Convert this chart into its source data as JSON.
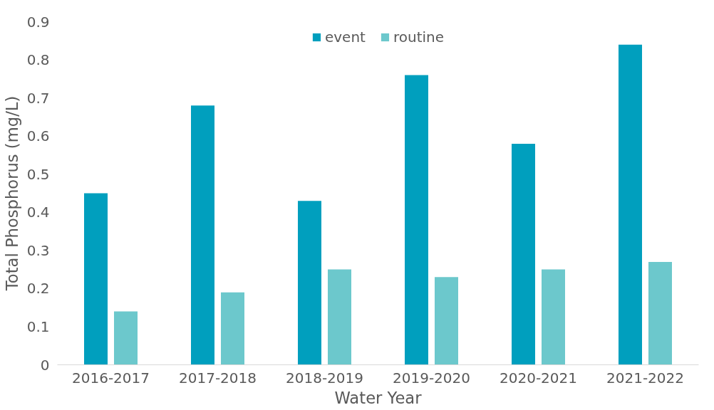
{
  "chart_data": {
    "type": "bar",
    "xlabel": "Water Year",
    "ylabel": "Total Phosphorus (mg/L)",
    "categories": [
      "2016-2017",
      "2017-2018",
      "2018-2019",
      "2019-2020",
      "2020-2021",
      "2021-2022"
    ],
    "series": [
      {
        "name": "event",
        "color": "#009fbe",
        "values": [
          0.45,
          0.68,
          0.43,
          0.76,
          0.58,
          0.84
        ]
      },
      {
        "name": "routine",
        "color": "#6cc8cc",
        "values": [
          0.14,
          0.19,
          0.25,
          0.23,
          0.25,
          0.27
        ]
      }
    ],
    "ylim": [
      0,
      0.9
    ],
    "yticks": [
      {
        "value": 0,
        "label": "0"
      },
      0.1,
      0.2,
      0.3,
      0.4,
      0.5,
      0.6,
      0.7,
      0.8,
      0.9
    ],
    "grid": false,
    "legend": "top"
  }
}
